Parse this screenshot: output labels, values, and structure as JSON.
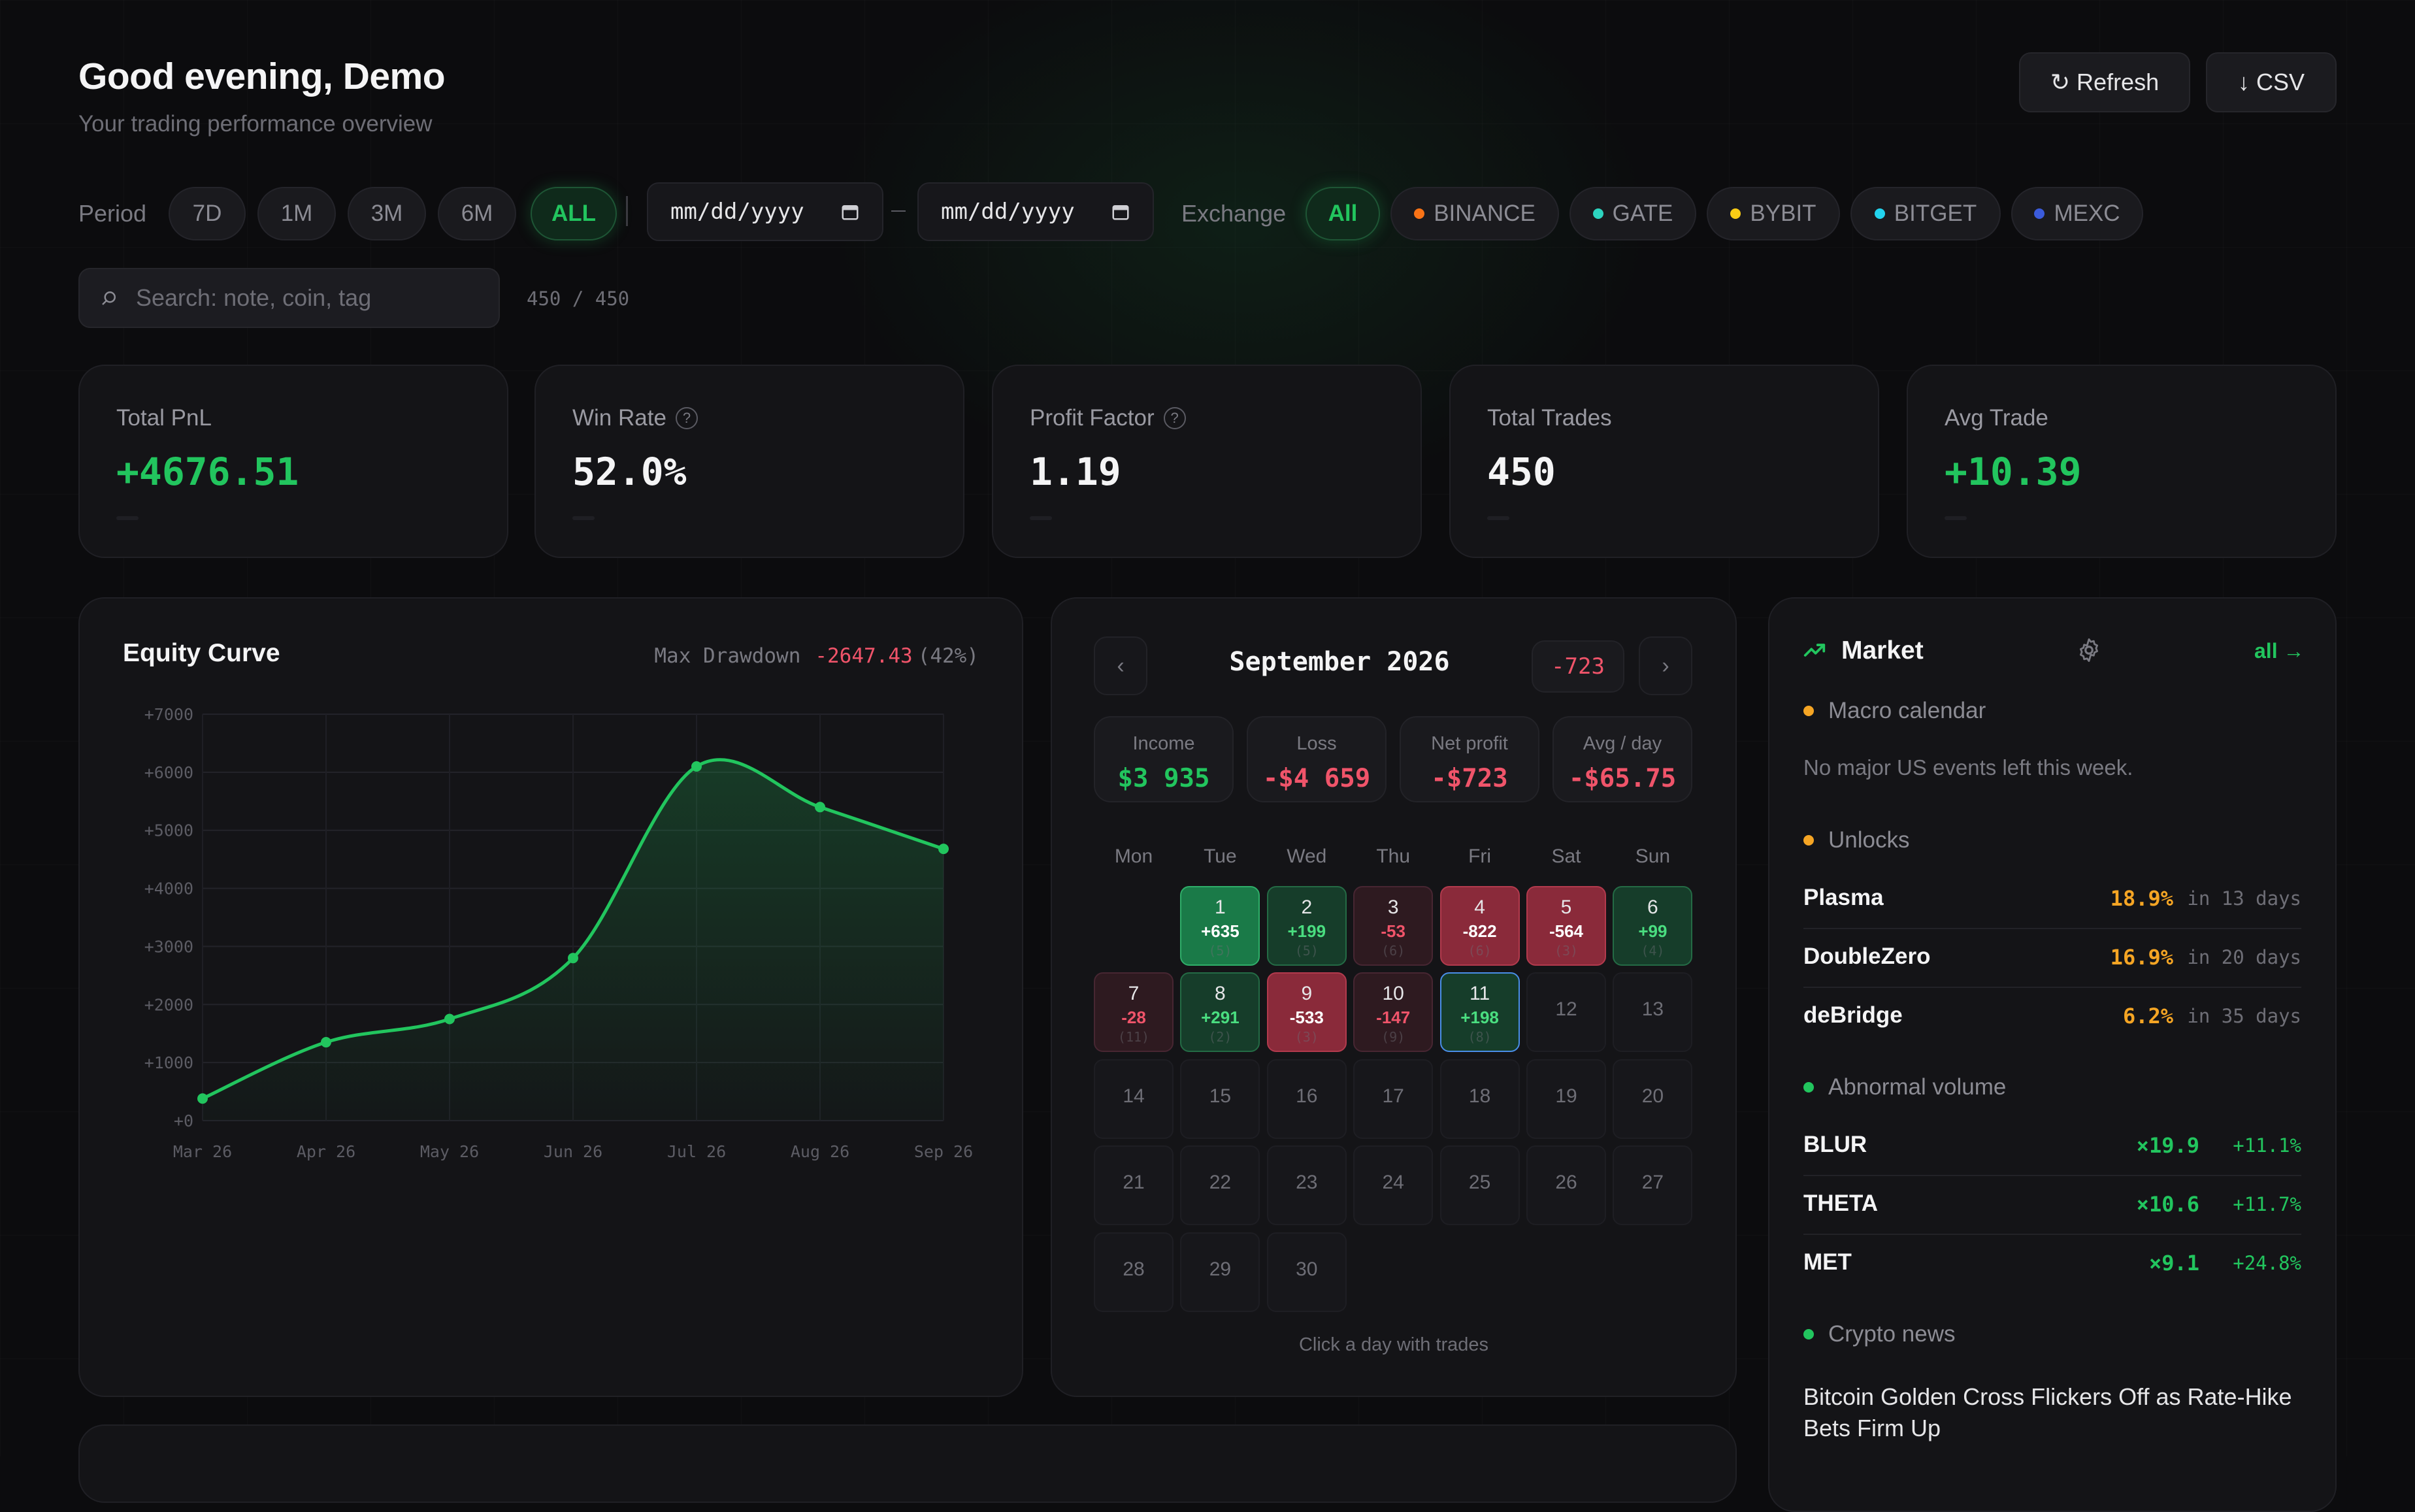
{
  "header": {
    "greeting": "Good evening, Demo",
    "subtitle": "Your trading performance overview"
  },
  "actions": {
    "refresh": "Refresh",
    "csv": "CSV"
  },
  "filters": {
    "period_label": "Period",
    "periods": [
      "7D",
      "1M",
      "3M",
      "6M",
      "ALL"
    ],
    "active_period": "ALL",
    "date_from_placeholder": "mm/dd/yyyy",
    "date_to_placeholder": "mm/dd/yyyy",
    "exchange_label": "Exchange",
    "exchanges": [
      {
        "name": "All",
        "active": true
      },
      {
        "name": "BINANCE",
        "color": "#f97316"
      },
      {
        "name": "GATE",
        "color": "#2dd4bf"
      },
      {
        "name": "BYBIT",
        "color": "#facc15"
      },
      {
        "name": "BITGET",
        "color": "#22d3ee"
      },
      {
        "name": "MEXC",
        "color": "#3b5bdb"
      }
    ]
  },
  "search": {
    "placeholder": "Search: note, coin, tag",
    "count": "450 / 450"
  },
  "stats": [
    {
      "label": "Total PnL",
      "value": "+4676.51",
      "color": "#22c55e",
      "help": false
    },
    {
      "label": "Win Rate",
      "value": "52.0%",
      "color": "#f4f4f5",
      "help": true
    },
    {
      "label": "Profit Factor",
      "value": "1.19",
      "color": "#f4f4f5",
      "help": true
    },
    {
      "label": "Total Trades",
      "value": "450",
      "color": "#f4f4f5",
      "help": false
    },
    {
      "label": "Avg Trade",
      "value": "+10.39",
      "color": "#22c55e",
      "help": false
    }
  ],
  "equity": {
    "title": "Equity Curve",
    "drawdown_label": "Max Drawdown",
    "drawdown_value": "-2647.43",
    "drawdown_pct": "(42%)"
  },
  "chart_data": {
    "type": "line",
    "title": "Equity Curve",
    "x": [
      "Mar 26",
      "Apr 26",
      "May 26",
      "Jun 26",
      "Jul 26",
      "Aug 26",
      "Sep 26"
    ],
    "series": [
      {
        "values": [
          380,
          1350,
          1750,
          2800,
          6100,
          5400,
          4680
        ]
      }
    ],
    "ylim": [
      0,
      7000
    ],
    "yticks": [
      "+0",
      "+1000",
      "+2000",
      "+3000",
      "+4000",
      "+5000",
      "+6000",
      "+7000"
    ],
    "grid": true,
    "color": "#22c55e"
  },
  "calendar": {
    "month": "September 2026",
    "month_total": "-723",
    "summary": [
      {
        "label": "Income",
        "value": "$3 935",
        "color": "#22c55e"
      },
      {
        "label": "Loss",
        "value": "-$4 659",
        "color": "#f0546a"
      },
      {
        "label": "Net profit",
        "value": "-$723",
        "color": "#f0546a"
      },
      {
        "label": "Avg / day",
        "value": "-$65.75",
        "color": "#f0546a"
      }
    ],
    "weekdays": [
      "Mon",
      "Tue",
      "Wed",
      "Thu",
      "Fri",
      "Sat",
      "Sun"
    ],
    "first_weekday_index": 1,
    "days": [
      {
        "d": "1",
        "pnl": "+635",
        "count": "(5)",
        "kind": "win-strong"
      },
      {
        "d": "2",
        "pnl": "+199",
        "count": "(5)",
        "kind": "win"
      },
      {
        "d": "3",
        "pnl": "-53",
        "count": "(6)",
        "kind": "loss"
      },
      {
        "d": "4",
        "pnl": "-822",
        "count": "(6)",
        "kind": "loss-strong"
      },
      {
        "d": "5",
        "pnl": "-564",
        "count": "(3)",
        "kind": "loss-strong"
      },
      {
        "d": "6",
        "pnl": "+99",
        "count": "(4)",
        "kind": "win"
      },
      {
        "d": "7",
        "pnl": "-28",
        "count": "(11)",
        "kind": "loss"
      },
      {
        "d": "8",
        "pnl": "+291",
        "count": "(2)",
        "kind": "win"
      },
      {
        "d": "9",
        "pnl": "-533",
        "count": "(3)",
        "kind": "loss-strong"
      },
      {
        "d": "10",
        "pnl": "-147",
        "count": "(9)",
        "kind": "loss"
      },
      {
        "d": "11",
        "pnl": "+198",
        "count": "(8)",
        "kind": "today"
      },
      {
        "d": "12"
      },
      {
        "d": "13"
      },
      {
        "d": "14"
      },
      {
        "d": "15"
      },
      {
        "d": "16"
      },
      {
        "d": "17"
      },
      {
        "d": "18"
      },
      {
        "d": "19"
      },
      {
        "d": "20"
      },
      {
        "d": "21"
      },
      {
        "d": "22"
      },
      {
        "d": "23"
      },
      {
        "d": "24"
      },
      {
        "d": "25"
      },
      {
        "d": "26"
      },
      {
        "d": "27"
      },
      {
        "d": "28"
      },
      {
        "d": "29"
      },
      {
        "d": "30"
      }
    ],
    "hint": "Click a day with trades"
  },
  "market": {
    "title": "Market",
    "all_link": "all →",
    "macro": {
      "title": "Macro calendar",
      "empty": "No major US events left this week.",
      "dot": "#f5a524"
    },
    "unlocks": {
      "title": "Unlocks",
      "dot": "#f5a524",
      "items": [
        {
          "name": "Plasma",
          "pct": "18.9%",
          "when": "in 13 days"
        },
        {
          "name": "DoubleZero",
          "pct": "16.9%",
          "when": "in 20 days"
        },
        {
          "name": "deBridge",
          "pct": "6.2%",
          "when": "in 35 days"
        }
      ]
    },
    "volume": {
      "title": "Abnormal volume",
      "dot": "#22c55e",
      "items": [
        {
          "name": "BLUR",
          "mult": "×19.9",
          "chg": "+11.1%"
        },
        {
          "name": "THETA",
          "mult": "×10.6",
          "chg": "+11.7%"
        },
        {
          "name": "MET",
          "mult": "×9.1",
          "chg": "+24.8%"
        }
      ]
    },
    "news": {
      "title": "Crypto news",
      "dot": "#22c55e",
      "headline": "Bitcoin Golden Cross Flickers Off as Rate-Hike Bets Firm Up"
    }
  }
}
